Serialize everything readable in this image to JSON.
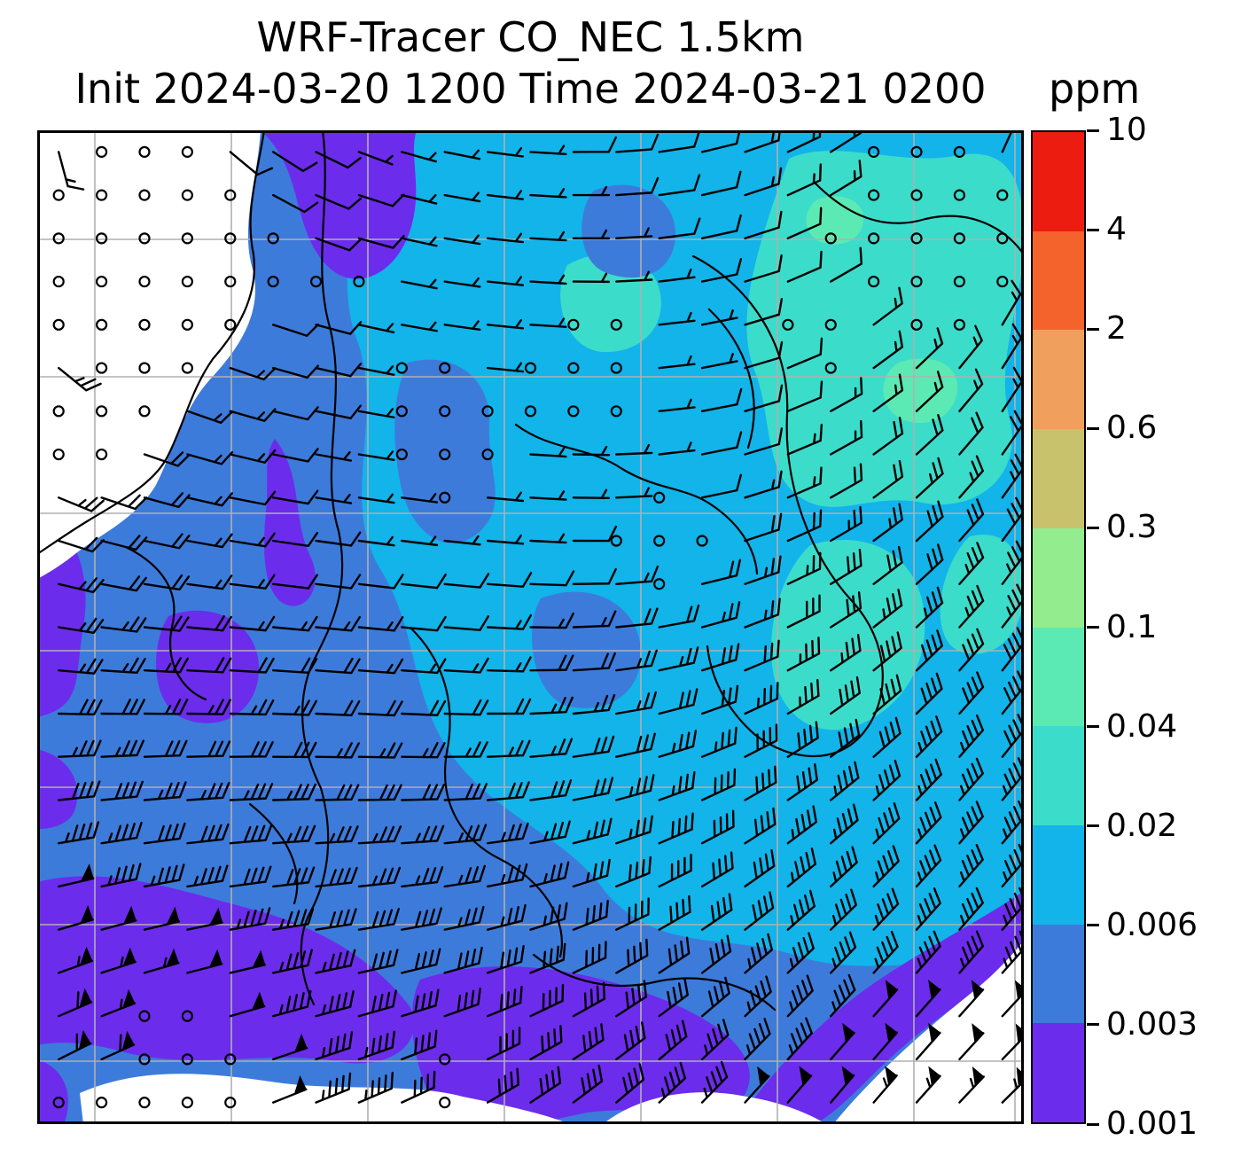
{
  "figure": {
    "title": "WRF-Tracer CO_NEC 1.5km",
    "subtitle": "Init 2024-03-20 1200 Time 2024-03-21 0200",
    "units_label": "ppm"
  },
  "chart_data": {
    "type": "heatmap",
    "title": "WRF-Tracer CO_NEC 1.5km",
    "subtitle": "Init 2024-03-20 1200 Time 2024-03-21 0200",
    "model": "WRF-Tracer",
    "tracer": "CO_NEC",
    "resolution": "1.5km",
    "init_time": "2024-03-20 1200",
    "valid_time": "2024-03-21 0200",
    "units": "ppm",
    "colorbar": {
      "orientation": "vertical",
      "scale": "discrete non-linear contour levels",
      "levels_bottom_to_top": [
        "0.001",
        "0.003",
        "0.006",
        "0.02",
        "0.04",
        "0.1",
        "0.3",
        "0.6",
        "2",
        "4",
        "10"
      ],
      "colors_bottom_to_top": [
        "#6c2cec",
        "#3d7bdb",
        "#12b4ea",
        "#3cdccb",
        "#5ceab4",
        "#93ec8d",
        "#c9c26d",
        "#f0a05c",
        "#f4632c",
        "#ec1c10"
      ]
    },
    "field_regions": [
      {
        "region": "top-left corner",
        "value_ppm": "below 0.001 (white, under contour minimum)"
      },
      {
        "region": "west / southwest",
        "value_ppm": "0.003-0.006 (blue) with 0.001-0.003 (violet) bands"
      },
      {
        "region": "center",
        "value_ppm": "0.006-0.02 (cyan-blue) with blue pockets"
      },
      {
        "region": "northeast quadrant",
        "value_ppm": "0.02-0.04 (turquoise) with small 0.04-0.1 pockets"
      },
      {
        "region": "south edge / southeast corner",
        "value_ppm": "0.001-0.003 bands with white gaps below 0.001"
      }
    ],
    "overlays": [
      "wind barbs",
      "calm-wind open circles",
      "geographic boundary lines",
      "gray lat-lon graticule"
    ],
    "wind_overlay": {
      "symbol_color": "#000000",
      "calm_symbol": "open circle",
      "strong_flow": "southern half, barbs with 50-unit pennants from the southwest sector",
      "light_flow": "northern third, light barbs and calm pockets"
    },
    "gridline_color": "#b0b0b0",
    "boundary_color": "#000000",
    "background_color": "#ffffff"
  }
}
